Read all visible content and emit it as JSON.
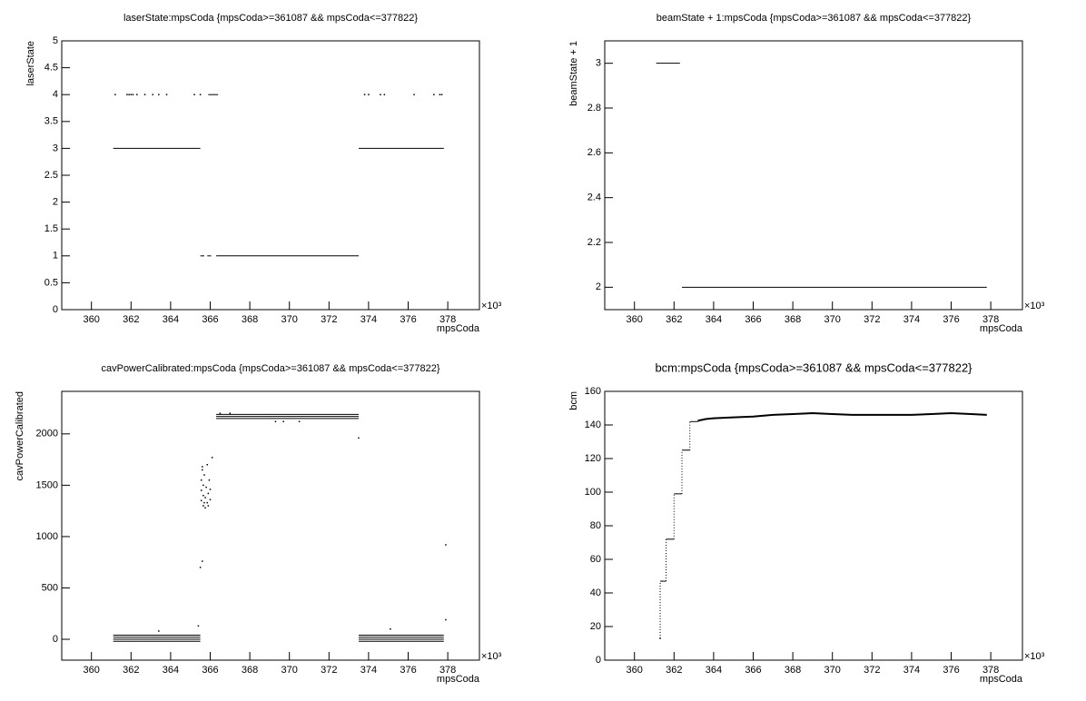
{
  "chart_data": [
    {
      "type": "scatter",
      "title": "laserState:mpsCoda {mpsCoda>=361087 && mpsCoda<=377822}",
      "xlabel": "mpsCoda",
      "ylabel": "laserState",
      "x_multiplier": "×10³",
      "xlim": [
        358.5,
        379.6
      ],
      "xticks": [
        360,
        362,
        364,
        366,
        368,
        370,
        372,
        374,
        376,
        378
      ],
      "ylim": [
        0,
        5
      ],
      "yticks": [
        0,
        0.5,
        1,
        1.5,
        2,
        2.5,
        3,
        3.5,
        4,
        4.5,
        5
      ],
      "color": "#000000",
      "segments": [
        {
          "x": [
            361.1,
            365.5
          ],
          "y": 3
        },
        {
          "x": [
            373.5,
            377.8
          ],
          "y": 3
        },
        {
          "x": [
            366.3,
            373.5
          ],
          "y": 1
        },
        {
          "x": [
            365.5,
            365.7
          ],
          "y": 1
        },
        {
          "x": [
            365.85,
            366.05
          ],
          "y": 1
        },
        {
          "x": [
            365.9,
            366.4
          ],
          "y": 4
        }
      ],
      "points": {
        "x": [
          361.2,
          361.8,
          361.9,
          362.0,
          362.1,
          362.3,
          362.7,
          363.1,
          363.4,
          363.8,
          365.2,
          365.5,
          373.8,
          374.0,
          374.6,
          374.8,
          376.3,
          377.3,
          377.6,
          377.7
        ],
        "y": [
          4,
          4,
          4,
          4,
          4,
          4,
          4,
          4,
          4,
          4,
          4,
          4,
          4,
          4,
          4,
          4,
          4,
          4,
          4,
          4
        ]
      }
    },
    {
      "type": "scatter",
      "title": "beamState + 1:mpsCoda {mpsCoda>=361087 && mpsCoda<=377822}",
      "xlabel": "mpsCoda",
      "ylabel": "beamState + 1",
      "x_multiplier": "×10³",
      "xlim": [
        358.5,
        379.6
      ],
      "xticks": [
        360,
        362,
        364,
        366,
        368,
        370,
        372,
        374,
        376,
        378
      ],
      "ylim": [
        1.9,
        3.1
      ],
      "yticks": [
        2,
        2.2,
        2.4,
        2.6,
        2.8,
        3
      ],
      "color": "#000000",
      "segments": [
        {
          "x": [
            361.1,
            362.3
          ],
          "y": 3
        },
        {
          "x": [
            362.4,
            377.8
          ],
          "y": 2
        }
      ],
      "points": {
        "x": [],
        "y": []
      }
    },
    {
      "type": "scatter",
      "title": "cavPowerCalibrated:mpsCoda {mpsCoda>=361087 && mpsCoda<=377822}",
      "xlabel": "mpsCoda",
      "ylabel": "cavPowerCalibrated",
      "x_multiplier": "×10³",
      "xlim": [
        358.5,
        379.6
      ],
      "xticks": [
        360,
        362,
        364,
        366,
        368,
        370,
        372,
        374,
        376,
        378
      ],
      "ylim": [
        -203,
        2414
      ],
      "yticks": [
        0,
        500,
        1000,
        1500,
        2000
      ],
      "color": "#000000",
      "segments": [
        {
          "x": [
            366.3,
            373.5
          ],
          "y": 2150
        },
        {
          "x": [
            366.3,
            373.5
          ],
          "y": 2170
        },
        {
          "x": [
            366.3,
            373.5
          ],
          "y": 2190
        },
        {
          "x": [
            361.1,
            365.5
          ],
          "y": -20
        },
        {
          "x": [
            361.1,
            365.5
          ],
          "y": 0
        },
        {
          "x": [
            361.1,
            365.5
          ],
          "y": 20
        },
        {
          "x": [
            361.1,
            365.5
          ],
          "y": 40
        },
        {
          "x": [
            373.5,
            377.8
          ],
          "y": -20
        },
        {
          "x": [
            373.5,
            377.8
          ],
          "y": 0
        },
        {
          "x": [
            373.5,
            377.8
          ],
          "y": 20
        },
        {
          "x": [
            373.5,
            377.8
          ],
          "y": 40
        }
      ],
      "points": {
        "x": [
          365.55,
          365.55,
          365.55,
          365.6,
          365.65,
          365.65,
          365.65,
          365.7,
          365.75,
          365.75,
          365.8,
          365.85,
          365.85,
          365.9,
          365.95,
          366.0,
          366.0,
          365.6,
          365.7,
          365.9,
          365.5,
          365.6,
          366.1,
          373.5,
          377.9,
          377.9,
          365.4,
          363.4,
          375.1,
          369.3,
          369.7,
          370.5,
          366.5,
          367.0
        ],
        "y": [
          1350,
          1450,
          1550,
          1650,
          1300,
          1400,
          1500,
          1600,
          1280,
          1380,
          1480,
          1700,
          1330,
          1420,
          1550,
          1360,
          1460,
          1680,
          1330,
          1300,
          700,
          760,
          1770,
          1960,
          920,
          190,
          130,
          80,
          100,
          2120,
          2120,
          2120,
          2200,
          2200
        ]
      }
    },
    {
      "type": "scatter",
      "title": "bcm:mpsCoda {mpsCoda>=361087 && mpsCoda<=377822}",
      "xlabel": "mpsCoda",
      "ylabel": "bcm",
      "x_multiplier": "×10³",
      "xlim": [
        358.5,
        379.6
      ],
      "xticks": [
        360,
        362,
        364,
        366,
        368,
        370,
        372,
        374,
        376,
        378
      ],
      "ylim": [
        0,
        160
      ],
      "yticks": [
        0,
        20,
        40,
        60,
        80,
        100,
        120,
        140,
        160
      ],
      "color": "#000000",
      "segments": [
        {
          "x": [
            361.3,
            361.6
          ],
          "y": 47
        },
        {
          "x": [
            361.6,
            362.0
          ],
          "y": 72
        },
        {
          "x": [
            362.0,
            362.4
          ],
          "y": 99
        },
        {
          "x": [
            362.4,
            362.8
          ],
          "y": 125
        },
        {
          "x": [
            362.8,
            363.2
          ],
          "y": 142
        }
      ],
      "points": {
        "x": [
          361.3
        ],
        "y": [
          13
        ]
      },
      "curve": {
        "x": [
          363.2,
          363.6,
          364.0,
          365.0,
          366.0,
          367.0,
          368.0,
          369.0,
          370.0,
          371.0,
          372.0,
          373.0,
          374.0,
          375.0,
          376.0,
          377.0,
          377.8
        ],
        "y": [
          142.5,
          143.5,
          144,
          144.5,
          145,
          146,
          146.5,
          147,
          146.5,
          146,
          146,
          146,
          146,
          146.5,
          147,
          146.5,
          146
        ]
      }
    }
  ]
}
